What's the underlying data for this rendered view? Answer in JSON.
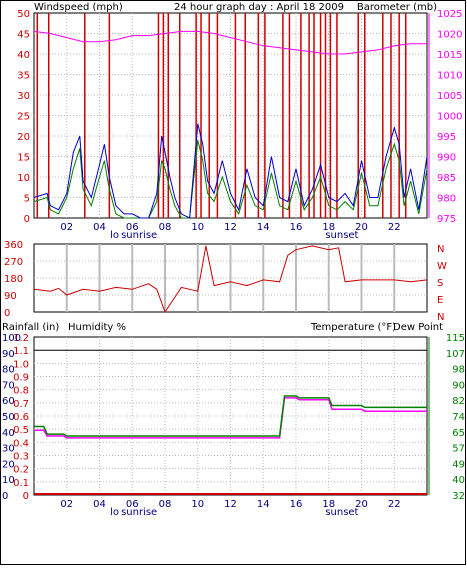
{
  "title": "24 hour graph day : April 18 2009",
  "colors": {
    "wind": "#cc0000",
    "wind_avg": "#0000cc",
    "wind_gust": "#008000",
    "baro": "#ff00ff",
    "rain": "#cc0000",
    "humidity": "#000080",
    "temp": "#008000",
    "dew": "#ff00ff",
    "grid": "#bbbbbb"
  },
  "chart_data": [
    {
      "type": "line",
      "title": "24 hour graph day : April 18 2009",
      "y_left_label": "Windspeed (mph)",
      "y_right_label": "Barometer (mb)",
      "ylim_left": [
        0,
        50
      ],
      "ylim_right": [
        975,
        1025
      ],
      "y_left_ticks": [
        "0",
        "5",
        "10",
        "15",
        "20",
        "25",
        "30",
        "35",
        "40",
        "45",
        "50"
      ],
      "y_right_ticks": [
        "975",
        "980",
        "985",
        "990",
        "995",
        "1000",
        "1005",
        "1010",
        "1015",
        "1020",
        "1025"
      ],
      "x_ticks": [
        "02",
        "04",
        "06",
        "08",
        "10",
        "12",
        "14",
        "16",
        "18",
        "20",
        "22"
      ],
      "sunrise_label": "sunrise",
      "sunset_label": "sunset",
      "lo_label": "lo",
      "sunrise_hour": 5.5,
      "sunset_hour": 19.5,
      "series": [
        {
          "name": "Barometer",
          "axis": "right",
          "x": [
            0,
            1,
            2,
            3,
            4,
            5,
            6,
            7,
            8,
            9,
            10,
            11,
            12,
            13,
            14,
            15,
            16,
            17,
            18,
            19,
            20,
            21,
            22,
            23,
            24
          ],
          "values": [
            1020.5,
            1020,
            1019,
            1018,
            1018,
            1018.5,
            1019.5,
            1019.5,
            1020,
            1020.5,
            1020.5,
            1020,
            1019,
            1018,
            1017,
            1016.5,
            1016,
            1015.5,
            1015,
            1015,
            1015.5,
            1016,
            1017,
            1017.5,
            1017.5
          ]
        },
        {
          "name": "Windspeed avg",
          "axis": "left",
          "x": [
            0,
            0.8,
            1,
            1.5,
            2,
            2.4,
            2.8,
            3,
            3.5,
            4,
            4.3,
            4.6,
            5,
            5.5,
            6,
            6.5,
            7,
            7.5,
            7.8,
            8,
            8.3,
            8.6,
            9,
            9.5,
            10,
            10.3,
            10.6,
            11,
            11.5,
            12,
            12.5,
            13,
            13.5,
            14,
            14.5,
            15,
            15.5,
            16,
            16.5,
            17,
            17.5,
            18,
            18.5,
            19,
            19.5,
            20,
            20.5,
            21,
            21.5,
            22,
            22.3,
            22.6,
            23,
            23.5,
            24
          ],
          "values": [
            5,
            6,
            3,
            2,
            6,
            16,
            20,
            9,
            5,
            13,
            18,
            10,
            3,
            1,
            1,
            0,
            0,
            6,
            20,
            16,
            10,
            5,
            1,
            0,
            23,
            18,
            9,
            6,
            14,
            6,
            2,
            12,
            5,
            3,
            15,
            5,
            4,
            12,
            3,
            7,
            13,
            5,
            4,
            6,
            3,
            14,
            5,
            5,
            15,
            22,
            18,
            5,
            12,
            2,
            15
          ]
        },
        {
          "name": "Windspeed gust",
          "axis": "left",
          "x": [
            0,
            0.8,
            1,
            1.5,
            2,
            2.4,
            2.8,
            3,
            3.5,
            4,
            4.3,
            4.6,
            5,
            5.5,
            6,
            6.5,
            7,
            7.5,
            7.8,
            8,
            8.3,
            8.6,
            9,
            9.5,
            10,
            10.3,
            10.6,
            11,
            11.5,
            12,
            12.5,
            13,
            13.5,
            14,
            14.5,
            15,
            15.5,
            16,
            16.5,
            17,
            17.5,
            18,
            18.5,
            19,
            19.5,
            20,
            20.5,
            21,
            21.5,
            22,
            22.3,
            22.6,
            23,
            23.5,
            24
          ],
          "values": [
            4,
            5,
            2,
            1,
            5,
            12,
            17,
            7,
            3,
            10,
            14,
            7,
            1,
            0,
            0,
            0,
            0,
            4,
            14,
            12,
            7,
            3,
            0,
            0,
            19,
            14,
            6,
            4,
            10,
            4,
            1,
            8,
            3,
            2,
            11,
            3,
            2,
            9,
            2,
            5,
            10,
            3,
            2,
            4,
            2,
            11,
            3,
            3,
            12,
            18,
            14,
            3,
            9,
            1,
            12
          ]
        }
      ],
      "wind_spikes_hours": [
        0.2,
        0.9,
        3.1,
        4.6,
        7.6,
        7.9,
        8.2,
        8.9,
        9.9,
        10.2,
        10.7,
        11.2,
        12.3,
        12.9,
        13.7,
        14.1,
        15.2,
        15.6,
        16.3,
        16.8,
        17.1,
        17.5,
        17.8,
        18.1,
        18.5,
        19.8,
        20.2,
        21.3,
        21.8,
        22.3,
        22.7
      ]
    },
    {
      "type": "line",
      "y_left_ticks": [
        "0",
        "90",
        "180",
        "270",
        "360"
      ],
      "y_right_ticks": [
        "N",
        "E",
        "S",
        "W",
        "N"
      ],
      "ylim": [
        0,
        360
      ],
      "x_ticks": [
        "02",
        "04",
        "06",
        "08",
        "10",
        "12",
        "14",
        "16",
        "18",
        "20",
        "22"
      ],
      "series": [
        {
          "name": "Wind direction",
          "x": [
            0,
            1,
            1.5,
            2,
            3,
            4,
            5,
            6,
            7,
            7.5,
            8,
            9,
            10,
            10.5,
            11,
            12,
            13,
            14,
            15,
            15.5,
            16,
            17,
            18,
            18.6,
            19,
            20,
            21,
            22,
            23,
            24
          ],
          "values": [
            120,
            110,
            125,
            90,
            120,
            110,
            130,
            120,
            150,
            120,
            0,
            130,
            110,
            350,
            140,
            160,
            140,
            170,
            160,
            300,
            330,
            350,
            330,
            340,
            160,
            170,
            170,
            170,
            160,
            170
          ]
        }
      ]
    },
    {
      "type": "line",
      "y_left_label": "Rainfall (in)",
      "y_left2_label": "Humidity %",
      "y_right_label": "Temperature (°F)",
      "y_right2_label": "Dew Point",
      "rain_ticks": [
        "0",
        "0.1",
        "0.2",
        "0.3",
        "0.4",
        "0.5",
        "0.6",
        "0.7",
        "0.8",
        "0.9",
        "1.0",
        "1.1",
        "1.2"
      ],
      "humidity_ticks": [
        "0",
        "10",
        "20",
        "30",
        "40",
        "50",
        "60",
        "70",
        "80",
        "90",
        "100"
      ],
      "temp_ticks": [
        "32",
        "40",
        "49",
        "57",
        "65",
        "74",
        "82",
        "90",
        "98",
        "107",
        "115"
      ],
      "temp_lim": [
        32,
        115
      ],
      "x_ticks": [
        "02",
        "04",
        "06",
        "08",
        "10",
        "12",
        "14",
        "16",
        "18",
        "20",
        "22"
      ],
      "sunrise_label": "sunrise",
      "sunset_label": "sunset",
      "lo_label": "lo",
      "series": [
        {
          "name": "Temperature",
          "x": [
            0,
            0.6,
            0.8,
            1.8,
            2,
            15,
            15.3,
            16,
            16.2,
            18,
            18.2,
            20,
            20.2,
            24
          ],
          "values": [
            68,
            68,
            64,
            64,
            63,
            63,
            84,
            84,
            83,
            83,
            79,
            79,
            78,
            78
          ]
        },
        {
          "name": "Dew Point",
          "x": [
            0,
            0.6,
            0.8,
            1.8,
            2,
            15,
            15.3,
            16,
            16.2,
            18,
            18.2,
            20,
            20.2,
            24
          ],
          "values": [
            66,
            66,
            63,
            63,
            62,
            62,
            83,
            83,
            82,
            82,
            77,
            77,
            76,
            76
          ]
        },
        {
          "name": "Rainfall",
          "x": [
            0,
            24
          ],
          "values": [
            0,
            0
          ]
        },
        {
          "name": "Humidity ceiling",
          "x": [
            0,
            24
          ],
          "values": [
            1.1,
            1.1
          ]
        }
      ]
    }
  ]
}
